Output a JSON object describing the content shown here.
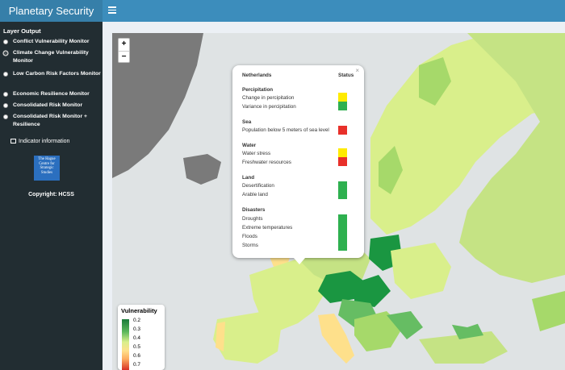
{
  "app": {
    "title": "Planetary Security"
  },
  "sidebar": {
    "heading": "Layer Output",
    "layers": [
      {
        "label": "Conflict Vulnerability Monitor",
        "selected": false
      },
      {
        "label": "Climate Change Vulnerability Monitor",
        "selected": true
      },
      {
        "label": "Low Carbon Risk Factors Monitor",
        "selected": false
      },
      {
        "label": "Economic Resilience Monitor",
        "selected": false
      },
      {
        "label": "Consolidated Risk Monitor",
        "selected": false
      },
      {
        "label": "Consolidated Risk Monitor + Resilience",
        "selected": false
      }
    ],
    "info_link": "Indicator information",
    "logo_text": "The Hague Centre for Strategic Studies",
    "copyright": "Copyright: HCSS"
  },
  "map": {
    "zoom_in": "+",
    "zoom_out": "−"
  },
  "popup": {
    "country": "Netherlands",
    "status_header": "Status",
    "close": "×",
    "sections": [
      {
        "title": "Percipitation",
        "items": [
          "Change in percipitation",
          "Variance in percipitation"
        ],
        "colors": [
          "#ffeb00",
          "#2eb04f"
        ]
      },
      {
        "title": "Sea",
        "items": [
          "Population below 5 meters of sea level"
        ],
        "colors": [
          "#e8302a"
        ]
      },
      {
        "title": "Water",
        "items": [
          "Water stress",
          "Freshwater resources"
        ],
        "colors": [
          "#ffeb00",
          "#e8302a"
        ]
      },
      {
        "title": "Land",
        "items": [
          "Desertification",
          "Arable land"
        ],
        "colors": [
          "#2eb04f"
        ]
      },
      {
        "title": "Disasters",
        "items": [
          "Droughts",
          "Extreme temperatures",
          "Floods",
          "Storms"
        ],
        "colors": [
          "#2eb04f"
        ]
      }
    ]
  },
  "legend": {
    "title": "Vulnerability",
    "values": [
      "0.2",
      "0.3",
      "0.4",
      "0.5",
      "0.6",
      "0.7"
    ]
  }
}
